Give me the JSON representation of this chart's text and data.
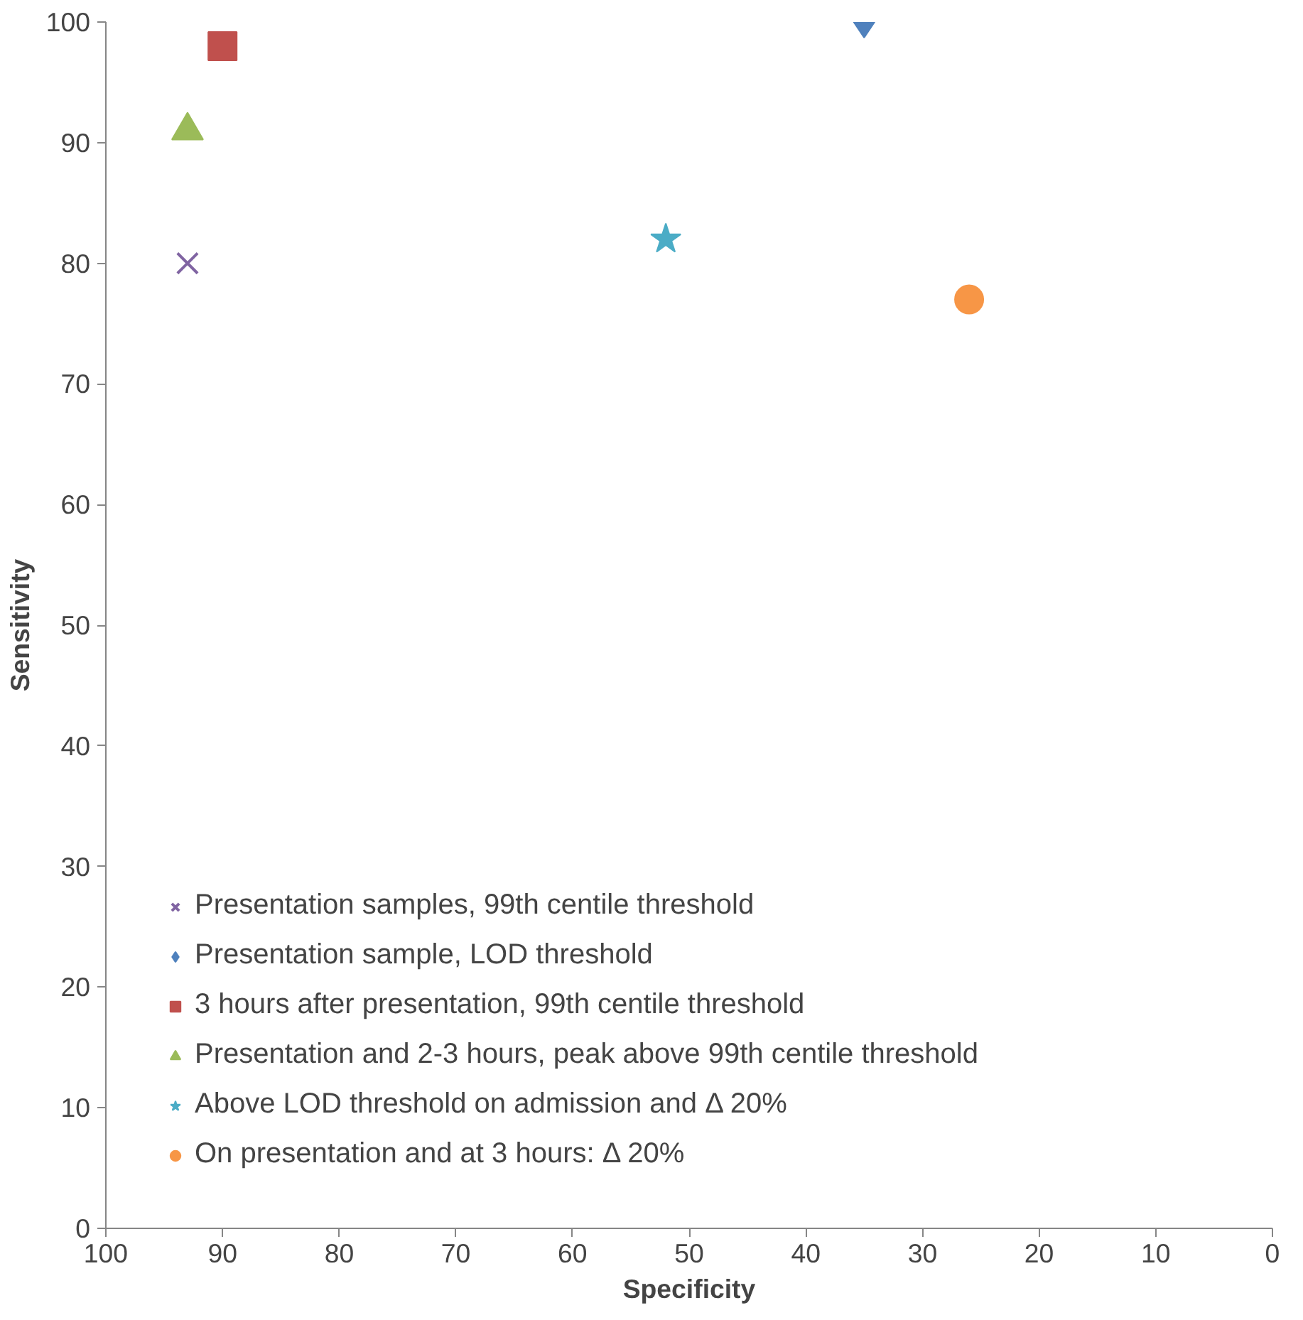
{
  "chart_data": {
    "type": "scatter",
    "xlabel": "Specificity",
    "ylabel": "Sensitivity",
    "xlim": [
      100,
      0
    ],
    "ylim": [
      0,
      100
    ],
    "xticks": [
      100,
      90,
      80,
      70,
      60,
      50,
      40,
      30,
      20,
      10,
      0
    ],
    "yticks": [
      0,
      10,
      20,
      30,
      40,
      50,
      60,
      70,
      80,
      90,
      100
    ],
    "grid": false,
    "legend": "bottom left",
    "series": [
      {
        "name": "Presentation samples, 99th centile threshold",
        "color": "#8064a2",
        "marker": "cross",
        "x": [
          93
        ],
        "values": [
          80
        ]
      },
      {
        "name": "Presentation sample, LOD threshold",
        "color": "#4f81bd",
        "marker": "diamond",
        "x": [
          35
        ],
        "values": [
          100
        ]
      },
      {
        "name": "3 hours after presentation, 99th centile threshold",
        "color": "#c0504d",
        "marker": "square",
        "x": [
          90
        ],
        "values": [
          98
        ]
      },
      {
        "name": "Presentation and 2-3 hours, peak above 99th centile threshold",
        "color": "#9bbb59",
        "marker": "triangle",
        "x": [
          93
        ],
        "values": [
          91
        ]
      },
      {
        "name": "Above LOD threshold on admission and Δ 20%",
        "color": "#4bacc6",
        "marker": "star",
        "x": [
          52
        ],
        "values": [
          82
        ]
      },
      {
        "name": "On presentation and at 3 hours: Δ 20%",
        "color": "#f79646",
        "marker": "circle",
        "x": [
          26
        ],
        "values": [
          77
        ]
      }
    ]
  }
}
